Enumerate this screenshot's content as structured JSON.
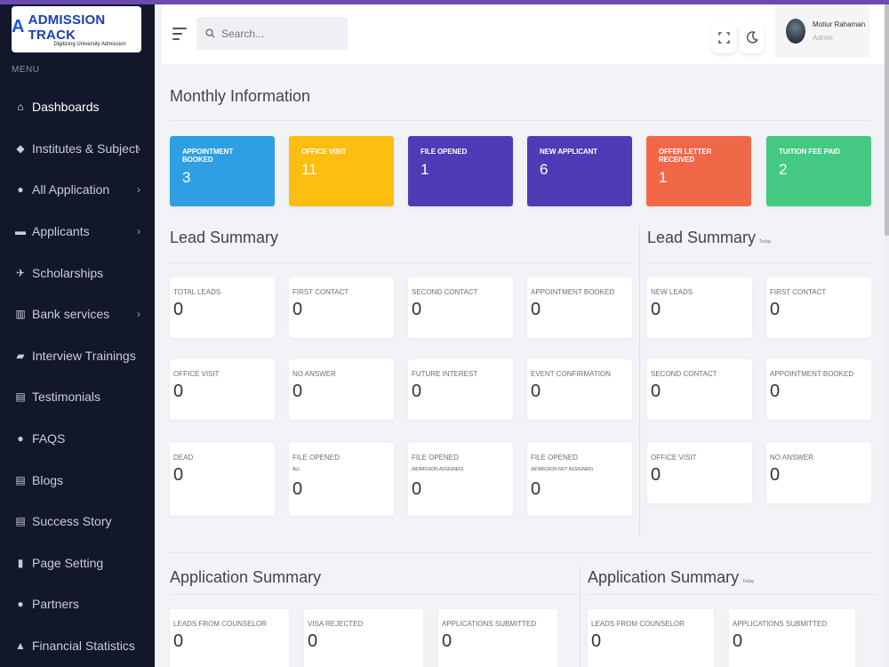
{
  "app": {
    "logo_letter": "A",
    "logo_text": "ADMISSION TRACK",
    "logo_tagline": "Digitizing University Admission"
  },
  "sidebar": {
    "menu_label": "MENU",
    "items": [
      {
        "label": "Dashboards",
        "icon": "home-icon",
        "chevron": false
      },
      {
        "label": "Institutes & Subject",
        "icon": "graduation-cap-icon",
        "chevron": true
      },
      {
        "label": "All Application",
        "icon": "user-circle-icon",
        "chevron": true
      },
      {
        "label": "Applicants",
        "icon": "file-icon",
        "chevron": true
      },
      {
        "label": "Scholarships",
        "icon": "plane-icon",
        "chevron": false
      },
      {
        "label": "Bank services",
        "icon": "bank-icon",
        "chevron": true
      },
      {
        "label": "Interview Trainings",
        "icon": "comment-icon",
        "chevron": false
      },
      {
        "label": "Testimonials",
        "icon": "document-icon",
        "chevron": false
      },
      {
        "label": "FAQS",
        "icon": "chat-bubble-icon",
        "chevron": false
      },
      {
        "label": "Blogs",
        "icon": "clipboard-icon",
        "chevron": false
      },
      {
        "label": "Success Story",
        "icon": "clipboard-icon",
        "chevron": false
      },
      {
        "label": "Page Setting",
        "icon": "book-icon",
        "chevron": false
      },
      {
        "label": "Partners",
        "icon": "handshake-icon",
        "chevron": false
      },
      {
        "label": "Financial Statistics",
        "icon": "chart-icon",
        "chevron": false
      }
    ]
  },
  "header": {
    "search_placeholder": "Search...",
    "user_name": "Motiur Rahaman",
    "user_role": "Admin"
  },
  "monthly": {
    "title": "Monthly Information",
    "cards": [
      {
        "label": "APPOINTMENT BOOKED",
        "value": "3",
        "color": "#2d9fe2"
      },
      {
        "label": "OFFICE VISIT",
        "value": "11",
        "color": "#fdbe10"
      },
      {
        "label": "FILE OPENED",
        "value": "1",
        "color": "#4e3bb6"
      },
      {
        "label": "NEW APPLICANT",
        "value": "6",
        "color": "#4e3bb6"
      },
      {
        "label": "OFFER LETTER RECEIVED",
        "value": "1",
        "color": "#f16849"
      },
      {
        "label": "TUITION FEE PAID",
        "value": "2",
        "color": "#44c983"
      }
    ]
  },
  "lead_summary": {
    "title": "Lead Summary",
    "cards": [
      {
        "label": "TOTAL LEADS",
        "sub": "",
        "value": "0"
      },
      {
        "label": "FIRST CONTACT",
        "sub": "",
        "value": "0"
      },
      {
        "label": "SECOND CONTACT",
        "sub": "",
        "value": "0"
      },
      {
        "label": "APPOINTMENT BOOKED",
        "sub": "",
        "value": "0"
      },
      {
        "label": "OFFICE VISIT",
        "sub": "",
        "value": "0"
      },
      {
        "label": "NO ANSWER",
        "sub": "",
        "value": "0"
      },
      {
        "label": "FUTURE INTEREST",
        "sub": "",
        "value": "0"
      },
      {
        "label": "EVENT CONFIRMATION",
        "sub": "",
        "value": "0"
      },
      {
        "label": "DEAD",
        "sub": "",
        "value": "0"
      },
      {
        "label": "FILE OPENED",
        "sub": "ALL",
        "value": "0"
      },
      {
        "label": "FILE OPENED",
        "sub": "(ADMISSION ASSIGNED)",
        "value": "0"
      },
      {
        "label": "FILE OPENED",
        "sub": "(ADMISSION NOT ASSIGNED)",
        "value": "0"
      }
    ]
  },
  "lead_summary_today": {
    "title": "Lead Summary",
    "badge": "Today",
    "cards": [
      {
        "label": "NEW LEADS",
        "value": "0"
      },
      {
        "label": "FIRST CONTACT",
        "value": "0"
      },
      {
        "label": "SECOND CONTACT",
        "value": "0"
      },
      {
        "label": "APPOINTMENT BOOKED",
        "value": "0"
      },
      {
        "label": "OFFICE VISIT",
        "value": "0"
      },
      {
        "label": "NO ANSWER",
        "value": "0"
      }
    ]
  },
  "application_summary": {
    "title": "Application Summary",
    "cards": [
      {
        "label": "LEADS FROM COUNSELOR",
        "value": "0"
      },
      {
        "label": "VISA REJECTED",
        "value": "0"
      },
      {
        "label": "APPLICATIONS SUBMITTED",
        "value": "0"
      }
    ]
  },
  "application_summary_today": {
    "title": "Application Summary",
    "badge": "Today",
    "cards": [
      {
        "label": "LEADS FROM COUNSELOR",
        "value": "0"
      },
      {
        "label": "APPLICATIONS SUBMITTED",
        "value": "0"
      }
    ]
  }
}
